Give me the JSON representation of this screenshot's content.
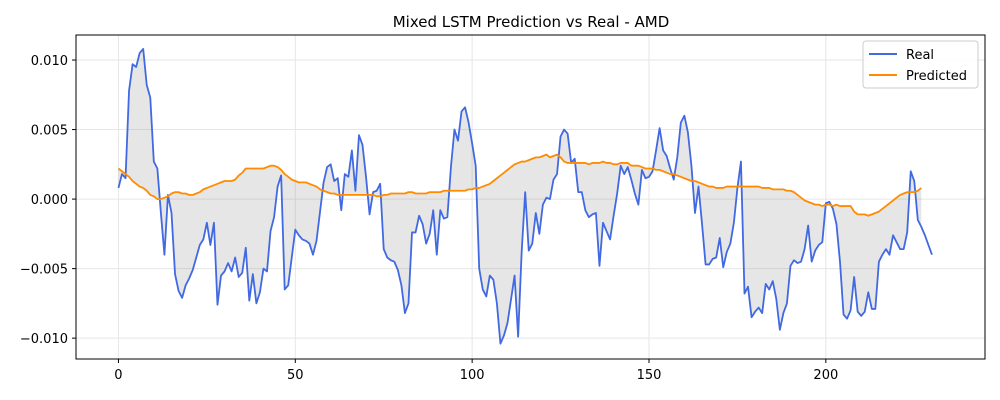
{
  "chart_data": {
    "type": "line",
    "title": "Mixed LSTM Prediction vs Real - AMD",
    "xlabel": "",
    "ylabel": "",
    "xlim": [
      -12,
      245
    ],
    "ylim": [
      -0.0115,
      0.0118
    ],
    "xticks": [
      0,
      50,
      100,
      150,
      200
    ],
    "yticks": [
      -0.01,
      -0.005,
      0.0,
      0.005,
      0.01
    ],
    "ytick_labels": [
      "−0.010",
      "−0.005",
      "0.000",
      "0.005",
      "0.010"
    ],
    "grid": true,
    "legend_position": "top-right",
    "fill_between": true,
    "series": [
      {
        "name": "Real",
        "color": "#4169e1",
        "values": [
          0.0008,
          0.0018,
          0.0015,
          0.0078,
          0.0097,
          0.0095,
          0.0105,
          0.0108,
          0.0082,
          0.0073,
          0.0027,
          0.0022,
          -0.001,
          -0.004,
          0.0003,
          -0.001,
          -0.0054,
          -0.0066,
          -0.0071,
          -0.0062,
          -0.0057,
          -0.0051,
          -0.0042,
          -0.0033,
          -0.0029,
          -0.0017,
          -0.0033,
          -0.0017,
          -0.0076,
          -0.0055,
          -0.0052,
          -0.0046,
          -0.0052,
          -0.0042,
          -0.0056,
          -0.0053,
          -0.0035,
          -0.0073,
          -0.0054,
          -0.0075,
          -0.0067,
          -0.005,
          -0.0052,
          -0.0023,
          -0.0013,
          0.0009,
          0.0017,
          -0.0065,
          -0.0062,
          -0.0042,
          -0.0022,
          -0.0026,
          -0.0029,
          -0.003,
          -0.0032,
          -0.004,
          -0.003,
          -0.0009,
          0.0012,
          0.0023,
          0.0025,
          0.0013,
          0.0015,
          -0.0008,
          0.0018,
          0.0016,
          0.0035,
          0.0006,
          0.0046,
          0.0039,
          0.0016,
          -0.0011,
          0.0005,
          0.0006,
          0.0011,
          -0.0036,
          -0.0042,
          -0.0044,
          -0.0045,
          -0.0051,
          -0.0062,
          -0.0082,
          -0.0075,
          -0.0024,
          -0.0024,
          -0.0012,
          -0.0018,
          -0.0032,
          -0.0025,
          -0.0008,
          -0.004,
          -0.0008,
          -0.0014,
          -0.0013,
          0.0023,
          0.005,
          0.0042,
          0.0063,
          0.0066,
          0.0055,
          0.004,
          0.0024,
          -0.005,
          -0.0065,
          -0.007,
          -0.0055,
          -0.0058,
          -0.0075,
          -0.0104,
          -0.0098,
          -0.0089,
          -0.0072,
          -0.0055,
          -0.0099,
          -0.0038,
          0.0005,
          -0.0037,
          -0.0032,
          -0.001,
          -0.0025,
          -0.0004,
          0.0001,
          0.0,
          0.0014,
          0.0018,
          0.0045,
          0.005,
          0.0047,
          0.0026,
          0.0029,
          0.0005,
          0.0005,
          -0.0008,
          -0.0013,
          -0.0011,
          -0.001,
          -0.0048,
          -0.0017,
          -0.0023,
          -0.0029,
          -0.0012,
          0.0004,
          0.0024,
          0.0018,
          0.0023,
          0.0014,
          0.0004,
          -0.0004,
          0.0021,
          0.0015,
          0.0016,
          0.002,
          0.0035,
          0.0051,
          0.0035,
          0.0031,
          0.0022,
          0.0014,
          0.003,
          0.0055,
          0.006,
          0.0048,
          0.0024,
          -0.001,
          0.0009,
          -0.0018,
          -0.0047,
          -0.0047,
          -0.0043,
          -0.0042,
          -0.0028,
          -0.0049,
          -0.0038,
          -0.0032,
          -0.0017,
          0.0008,
          0.0027,
          -0.0068,
          -0.0063,
          -0.0085,
          -0.0081,
          -0.0078,
          -0.0082,
          -0.0061,
          -0.0065,
          -0.0059,
          -0.0072,
          -0.0094,
          -0.0082,
          -0.0075,
          -0.0048,
          -0.0044,
          -0.0046,
          -0.0045,
          -0.0036,
          -0.0019,
          -0.0045,
          -0.0037,
          -0.0033,
          -0.0031,
          -0.0003,
          -0.0002,
          -0.0007,
          -0.0018,
          -0.0045,
          -0.0083,
          -0.0086,
          -0.008,
          -0.0056,
          -0.0081,
          -0.0084,
          -0.0081,
          -0.0067,
          -0.0079,
          -0.0079,
          -0.0045,
          -0.004,
          -0.0036,
          -0.004,
          -0.0026,
          -0.0031,
          -0.0036,
          -0.0036,
          -0.0024,
          0.002,
          0.0013,
          -0.0015,
          -0.002,
          -0.0026,
          -0.0033,
          -0.004
        ]
      },
      {
        "name": "Predicted",
        "color": "#ff8c00",
        "values": [
          0.0022,
          0.002,
          0.0018,
          0.0016,
          0.0013,
          0.0011,
          0.0009,
          0.0008,
          0.0006,
          0.0003,
          0.0002,
          0.0,
          0.0,
          0.0001,
          0.0002,
          0.0004,
          0.0005,
          0.0005,
          0.0004,
          0.0004,
          0.0003,
          0.0003,
          0.0004,
          0.0005,
          0.0007,
          0.0008,
          0.0009,
          0.001,
          0.0011,
          0.0012,
          0.0013,
          0.0013,
          0.0013,
          0.0014,
          0.0017,
          0.0019,
          0.0022,
          0.0022,
          0.0022,
          0.0022,
          0.0022,
          0.0022,
          0.0023,
          0.0024,
          0.0024,
          0.0023,
          0.0021,
          0.0018,
          0.0016,
          0.0014,
          0.0013,
          0.0012,
          0.0012,
          0.0012,
          0.0011,
          0.001,
          0.0009,
          0.0007,
          0.0006,
          0.0005,
          0.0004,
          0.0004,
          0.0003,
          0.0003,
          0.0003,
          0.0003,
          0.0003,
          0.0003,
          0.0003,
          0.0003,
          0.0003,
          0.0003,
          0.0003,
          0.0002,
          0.0002,
          0.0003,
          0.0003,
          0.0004,
          0.0004,
          0.0004,
          0.0004,
          0.0004,
          0.0005,
          0.0005,
          0.0004,
          0.0004,
          0.0004,
          0.0004,
          0.0005,
          0.0005,
          0.0005,
          0.0005,
          0.0006,
          0.0006,
          0.0006,
          0.0006,
          0.0006,
          0.0006,
          0.0006,
          0.0007,
          0.0007,
          0.0008,
          0.0008,
          0.0009,
          0.001,
          0.0011,
          0.0013,
          0.0015,
          0.0017,
          0.0019,
          0.0021,
          0.0023,
          0.0025,
          0.0026,
          0.0027,
          0.0027,
          0.0028,
          0.0029,
          0.003,
          0.003,
          0.0031,
          0.0032,
          0.003,
          0.0031,
          0.0032,
          0.003,
          0.0027,
          0.0026,
          0.0026,
          0.0026,
          0.0026,
          0.0026,
          0.0026,
          0.0025,
          0.0026,
          0.0026,
          0.0026,
          0.0027,
          0.0026,
          0.0026,
          0.0025,
          0.0025,
          0.0026,
          0.0026,
          0.0026,
          0.0024,
          0.0024,
          0.0024,
          0.0023,
          0.0022,
          0.0022,
          0.0022,
          0.0021,
          0.0021,
          0.002,
          0.0019,
          0.0018,
          0.0018,
          0.0017,
          0.0016,
          0.0015,
          0.0014,
          0.0013,
          0.0013,
          0.0012,
          0.0011,
          0.001,
          0.0009,
          0.0009,
          0.0008,
          0.0008,
          0.0008,
          0.0009,
          0.0009,
          0.0009,
          0.0009,
          0.0009,
          0.0009,
          0.0009,
          0.0009,
          0.0009,
          0.0009,
          0.0008,
          0.0008,
          0.0008,
          0.0007,
          0.0007,
          0.0007,
          0.0007,
          0.0006,
          0.0006,
          0.0005,
          0.0003,
          0.0001,
          -0.0001,
          -0.0002,
          -0.0003,
          -0.0004,
          -0.0004,
          -0.0005,
          -0.0004,
          -0.0004,
          -0.0005,
          -0.0004,
          -0.0005,
          -0.0005,
          -0.0005,
          -0.0005,
          -0.0009,
          -0.0011,
          -0.0011,
          -0.0011,
          -0.0012,
          -0.0011,
          -0.001,
          -0.0009,
          -0.0007,
          -0.0005,
          -0.0003,
          -0.0001,
          0.0001,
          0.0003,
          0.0004,
          0.0005,
          0.0005,
          0.0005,
          0.0006,
          0.0008
        ]
      }
    ]
  }
}
